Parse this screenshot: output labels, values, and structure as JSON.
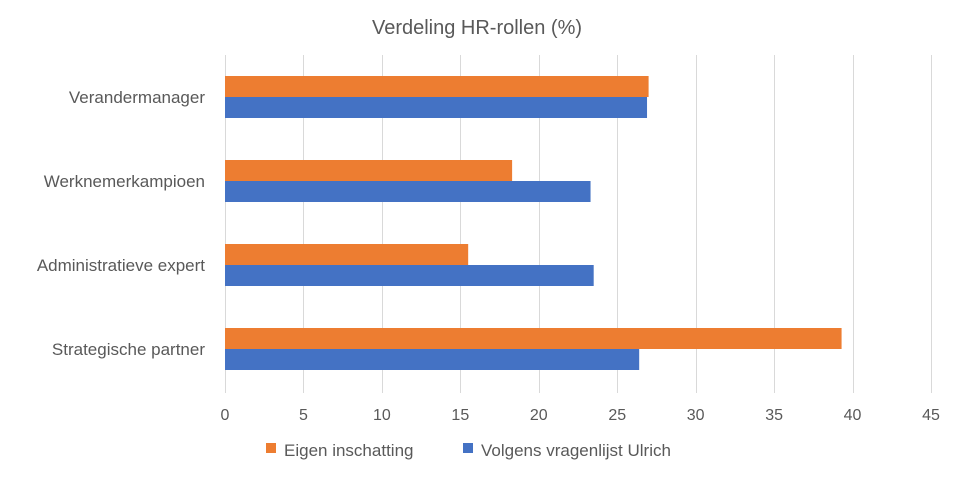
{
  "chart_data": {
    "type": "bar",
    "orientation": "horizontal",
    "title": "Verdeling HR-rollen (%)",
    "categories": [
      "Verandermanager",
      "Werknemerkampioen",
      "Administratieve expert",
      "Strategische partner"
    ],
    "series": [
      {
        "name": "Eigen inschatting",
        "color": "#ed7d31",
        "values": [
          27.0,
          18.3,
          15.5,
          39.3
        ]
      },
      {
        "name": "Volgens vragenlijst Ulrich",
        "color": "#4472c4",
        "values": [
          26.9,
          23.3,
          23.5,
          26.4
        ]
      }
    ],
    "xlim": [
      0,
      45
    ],
    "xticks": [
      "0",
      "5",
      "10",
      "15",
      "20",
      "25",
      "30",
      "35",
      "40",
      "45"
    ],
    "grid": true,
    "legend_position": "bottom"
  }
}
